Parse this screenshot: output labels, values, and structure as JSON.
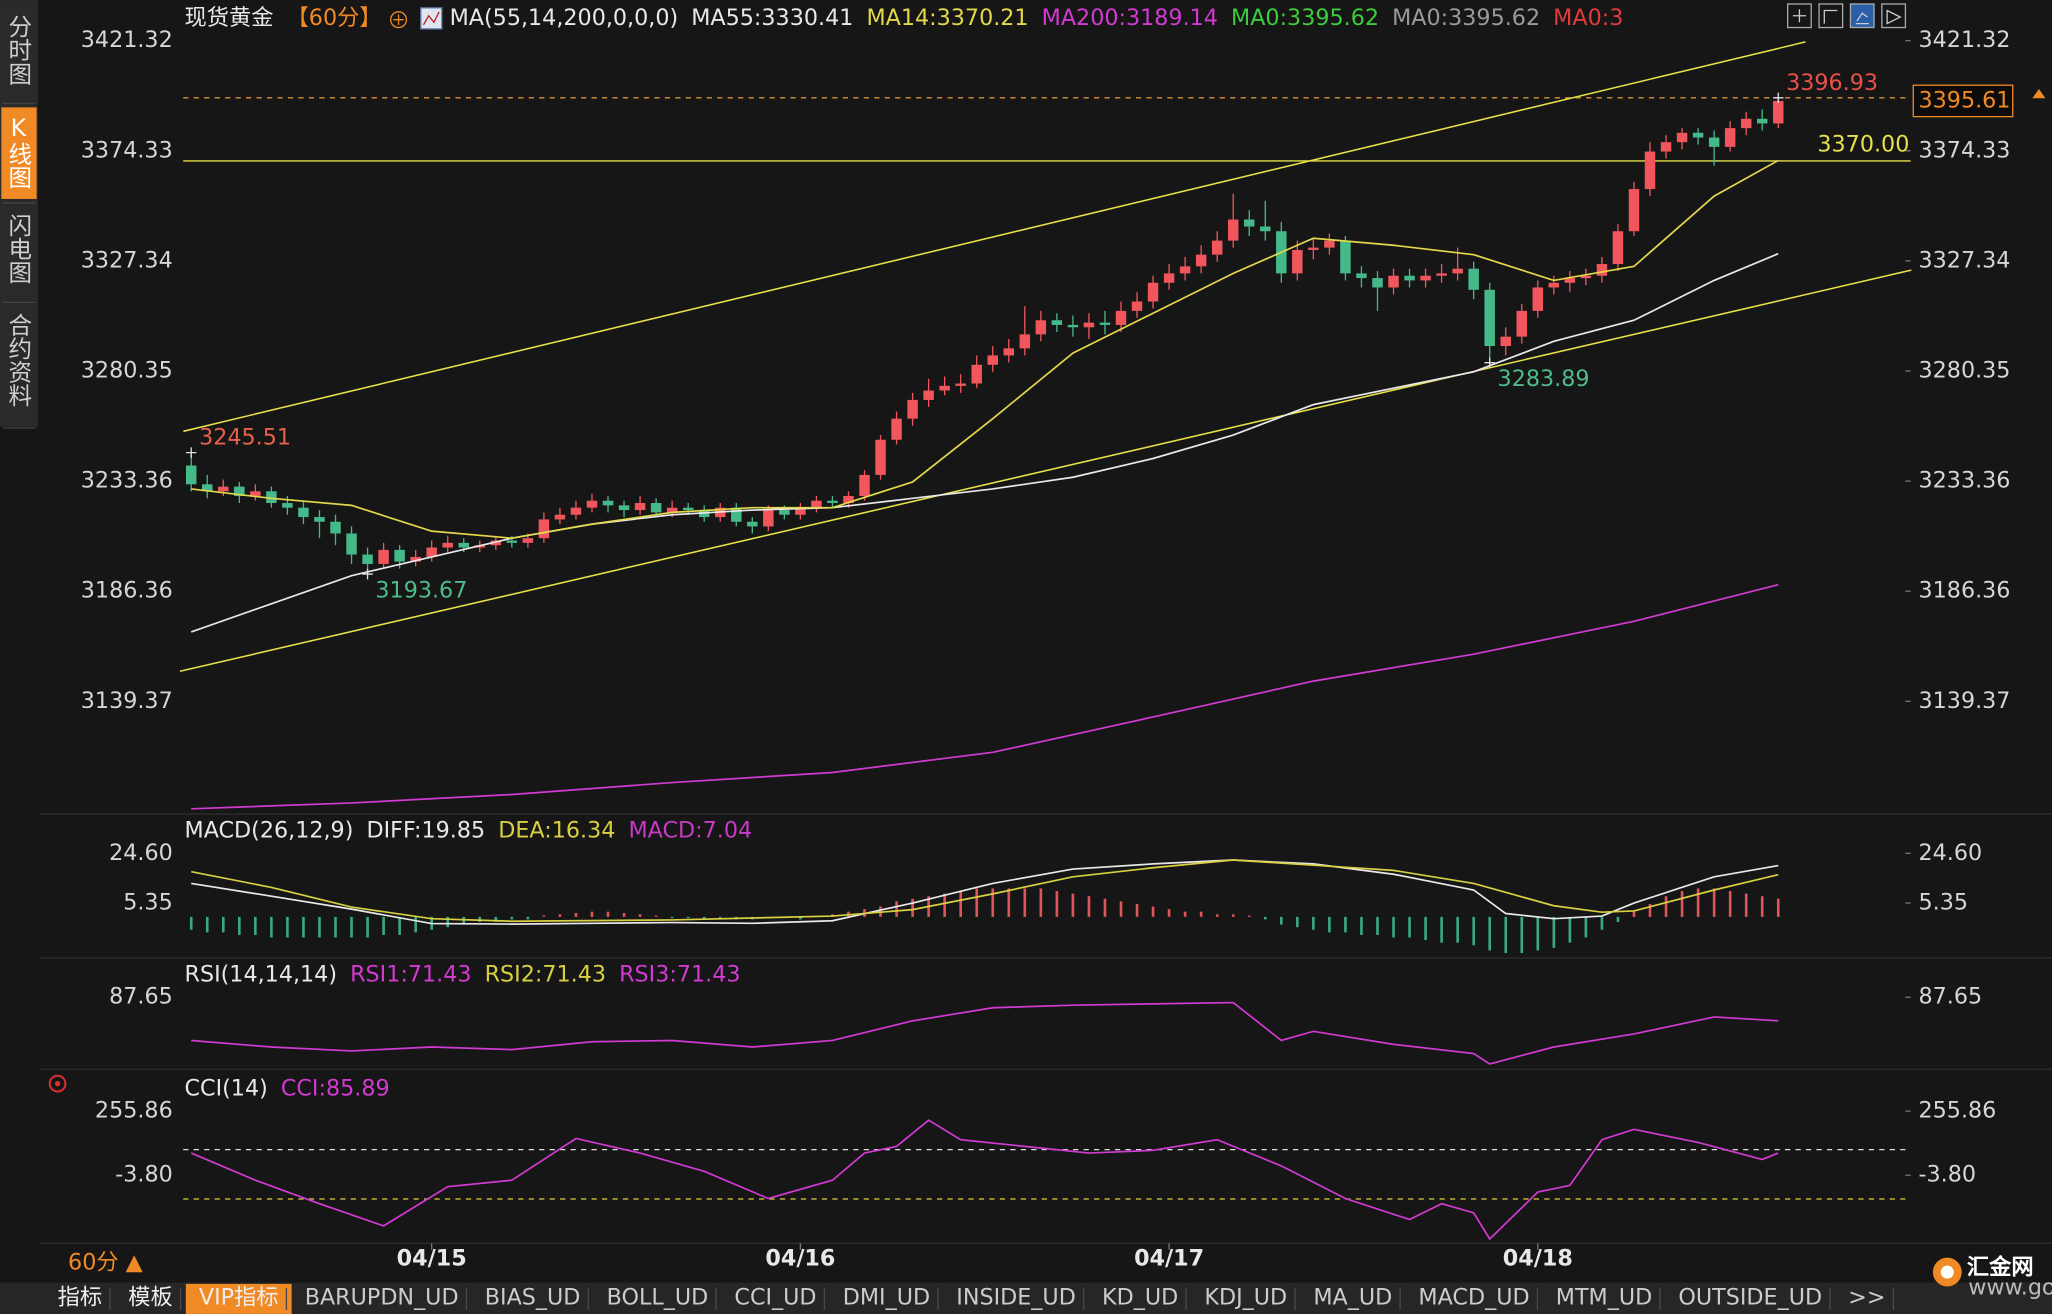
{
  "chart_data": [
    {
      "type": "candlestick",
      "title": "现货黄金",
      "period": "【60分】",
      "indicator": "MA(55,14,200,0,0,0)",
      "up_color": "#f0565c",
      "down_color": "#46b98a",
      "xlim": [
        -0.5,
        107.26
      ],
      "ylim": [
        3092.38,
        3438.66
      ],
      "yticks": [
        3421.32,
        3374.33,
        3327.34,
        3280.35,
        3233.36,
        3186.36,
        3139.37
      ],
      "open": [
        3240,
        3232,
        3229,
        3231,
        3227,
        3229,
        3224,
        3222,
        3218,
        3216,
        3211,
        3202,
        3198,
        3204,
        3199,
        3201,
        3205,
        3207,
        3205,
        3206,
        3208,
        3207,
        3209,
        3217,
        3219,
        3222,
        3225,
        3223,
        3221,
        3224,
        3220,
        3222,
        3221,
        3218,
        3222,
        3216,
        3214,
        3221,
        3219,
        3222,
        3225,
        3224,
        3227,
        3236,
        3251,
        3260,
        3268,
        3272,
        3274,
        3275,
        3283,
        3287,
        3290,
        3296,
        3302,
        3300,
        3299,
        3301,
        3300,
        3306,
        3310,
        3318,
        3322,
        3325,
        3330,
        3336,
        3345,
        3342,
        3340,
        3322,
        3332,
        3333,
        3336,
        3322,
        3320,
        3316,
        3321,
        3319,
        3321,
        3322,
        3324,
        3315,
        3291,
        3295,
        3306,
        3316,
        3318,
        3320,
        3321,
        3326,
        3340,
        3358,
        3374,
        3378,
        3382,
        3380,
        3376,
        3384,
        3388,
        3386
      ],
      "high": [
        3245.51,
        3236,
        3234,
        3233,
        3232,
        3231,
        3227,
        3225,
        3221,
        3219,
        3214,
        3205,
        3207,
        3206,
        3204,
        3208,
        3210,
        3209,
        3208,
        3210,
        3210,
        3211,
        3220,
        3222,
        3225,
        3228,
        3227,
        3225,
        3227,
        3226,
        3225,
        3224,
        3223,
        3224,
        3224,
        3218,
        3223,
        3223,
        3224,
        3227,
        3227,
        3229,
        3238,
        3253,
        3263,
        3271,
        3277,
        3278,
        3279,
        3287,
        3291,
        3294,
        3308,
        3306,
        3305,
        3304,
        3305,
        3306,
        3310,
        3314,
        3321,
        3326,
        3329,
        3334,
        3340,
        3356,
        3349,
        3353,
        3344,
        3336,
        3337,
        3339,
        3338,
        3325,
        3323,
        3324,
        3324,
        3324,
        3326,
        3333,
        3327,
        3318,
        3299,
        3309,
        3319,
        3321,
        3323,
        3324,
        3329,
        3343,
        3361,
        3378,
        3381,
        3384,
        3384,
        3383,
        3387,
        3391,
        3392,
        3396.93
      ],
      "low": [
        3229,
        3226,
        3227,
        3224,
        3225,
        3222,
        3219,
        3215,
        3209,
        3206,
        3198,
        3193.67,
        3196,
        3196,
        3197,
        3199,
        3203,
        3203,
        3203,
        3204,
        3205,
        3205,
        3207,
        3215,
        3217,
        3220,
        3220,
        3218,
        3219,
        3218,
        3218,
        3219,
        3216,
        3216,
        3214,
        3211,
        3212,
        3217,
        3217,
        3220,
        3222,
        3222,
        3225,
        3234,
        3249,
        3257,
        3265,
        3270,
        3271,
        3273,
        3280,
        3284,
        3287,
        3293,
        3297,
        3295,
        3294,
        3296,
        3297,
        3303,
        3307,
        3315,
        3319,
        3322,
        3327,
        3333,
        3338,
        3336,
        3318,
        3319,
        3328,
        3330,
        3319,
        3316,
        3306,
        3313,
        3316,
        3316,
        3318,
        3319,
        3311,
        3283.89,
        3287,
        3292,
        3303,
        3313,
        3314,
        3317,
        3318,
        3323,
        3338,
        3355,
        3371,
        3375,
        3377,
        3368,
        3374,
        3381,
        3383,
        3384
      ],
      "close": [
        3232,
        3229,
        3231,
        3227,
        3229,
        3224,
        3222,
        3218,
        3216,
        3211,
        3202,
        3198,
        3204,
        3199,
        3201,
        3205,
        3207,
        3205,
        3206,
        3208,
        3207,
        3209,
        3217,
        3219,
        3222,
        3225,
        3223,
        3221,
        3224,
        3220,
        3222,
        3221,
        3218,
        3222,
        3216,
        3214,
        3221,
        3219,
        3222,
        3225,
        3224,
        3227,
        3236,
        3251,
        3260,
        3268,
        3272,
        3274,
        3275,
        3283,
        3287,
        3290,
        3296,
        3302,
        3300,
        3299,
        3301,
        3300,
        3306,
        3310,
        3318,
        3322,
        3325,
        3330,
        3336,
        3345,
        3342,
        3340,
        3322,
        3332,
        3333,
        3336,
        3322,
        3320,
        3316,
        3321,
        3319,
        3321,
        3322,
        3324,
        3315,
        3291,
        3295,
        3306,
        3316,
        3318,
        3320,
        3321,
        3326,
        3340,
        3358,
        3374,
        3378,
        3382,
        3380,
        3376,
        3384,
        3388,
        3386,
        3395.61
      ],
      "series": [
        {
          "name": "MA55:3330.41",
          "color": "#e8e8e8",
          "x": [
            0,
            5,
            10,
            15,
            20,
            25,
            30,
            35,
            40,
            45,
            50,
            55,
            60,
            65,
            70,
            75,
            80,
            85,
            90,
            95,
            99
          ],
          "values": [
            3169,
            3181,
            3193,
            3201,
            3209,
            3215,
            3219,
            3221,
            3222,
            3226,
            3230,
            3235,
            3243,
            3253,
            3266,
            3273,
            3280,
            3293,
            3302,
            3319,
            3330.41
          ]
        },
        {
          "name": "MA14:3370.21",
          "color": "#e3d84a",
          "x": [
            0,
            5,
            10,
            15,
            20,
            25,
            30,
            35,
            40,
            45,
            50,
            55,
            60,
            65,
            70,
            75,
            80,
            85,
            90,
            95,
            99
          ],
          "values": [
            3230,
            3226,
            3223,
            3212,
            3209,
            3215,
            3220,
            3222,
            3222,
            3233,
            3260,
            3288,
            3305,
            3322,
            3337,
            3334,
            3330,
            3319,
            3325,
            3355,
            3370.21
          ]
        },
        {
          "name": "MA200:3189.14",
          "color": "#d23ad2",
          "x": [
            0,
            10,
            20,
            30,
            40,
            50,
            60,
            70,
            80,
            90,
            99
          ],
          "values": [
            3093.5,
            3096,
            3099.6,
            3104.7,
            3109,
            3117.6,
            3132.7,
            3148,
            3159.5,
            3173.5,
            3189.14
          ]
        }
      ],
      "extra_labels": [
        {
          "text": "MA0:3395.62",
          "color": "#3dcc3d"
        },
        {
          "text": "MA0:3395.62",
          "color": "#9a9a9a"
        },
        {
          "text": "MA0:3",
          "color": "#e03c3c"
        }
      ],
      "trendlines": [
        {
          "color": "#e6e04a",
          "x": [
            -0.49,
            100.7
          ],
          "values": [
            3254.6,
            3420.8
          ]
        },
        {
          "color": "#e6e04a",
          "x": [
            -0.7,
            107.3
          ],
          "values": [
            3152.2,
            3323.4
          ]
        }
      ],
      "hlines": [
        {
          "value": 3396.93,
          "color": "#d8903a",
          "dashed": true
        },
        {
          "value": 3370,
          "label": "3370.00",
          "color": "#e6e04a",
          "dashed": false
        }
      ],
      "annotations": [
        {
          "x": 0,
          "value": 3245.51,
          "color": "#e8604a"
        },
        {
          "x": 11,
          "value": 3193.67,
          "color": "#4dbb8a"
        },
        {
          "x": 81,
          "value": 3283.89,
          "color": "#4dbb8a"
        },
        {
          "x": 99,
          "value": 3396.93,
          "color": "#e8504a"
        }
      ],
      "price_box_color": "#f08a24"
    },
    {
      "type": "bar",
      "title": "MACD(26,12,9)",
      "xlim": [
        -0.5,
        107.26
      ],
      "ylim": [
        -14.91,
        38.28
      ],
      "yticks": [
        {
          "value": 24.6,
          "label": "24.60"
        },
        5.35
      ],
      "series": [
        {
          "name": "DIFF:19.85",
          "color": "#e8e8e8",
          "x": [
            0,
            5,
            10,
            15,
            20,
            25,
            30,
            35,
            40,
            45,
            50,
            55,
            60,
            65,
            70,
            75,
            80,
            82,
            85,
            88,
            90,
            95,
            99
          ],
          "values": [
            12.95,
            8,
            3,
            -2.6,
            -2.8,
            -2.5,
            -2.2,
            -2.5,
            -1.5,
            5.35,
            12.95,
            18.5,
            20.5,
            22,
            20.5,
            16.5,
            10.4,
            1.3,
            -0.7,
            0.3,
            5.35,
            15.5,
            19.85
          ]
        },
        {
          "name": "DEA:16.34",
          "color": "#d8d040",
          "x": [
            0,
            5,
            10,
            15,
            20,
            30,
            40,
            45,
            50,
            55,
            60,
            65,
            70,
            75,
            80,
            85,
            88,
            90,
            95,
            99
          ],
          "values": [
            17.5,
            11.4,
            3.8,
            -0.7,
            -1.7,
            -1.2,
            0.3,
            2.8,
            8.9,
            15.5,
            19,
            22,
            20,
            18,
            12.95,
            4.3,
            1.8,
            2.3,
            10.4,
            16.34
          ]
        },
        {
          "name": "MACD:7.04",
          "color": "#c43cc4",
          "type": "bar",
          "up_color": "#e0555a",
          "down_color": "#3aa880",
          "values": [
            -5,
            -6,
            -6,
            -7,
            -7,
            -8,
            -8,
            -8,
            -8,
            -8,
            -8,
            -8,
            -7,
            -7,
            -6,
            -5,
            -4,
            -3,
            -2,
            -2,
            -1,
            -1,
            0.5,
            1,
            1.5,
            2,
            2,
            1.5,
            1,
            0.5,
            -0.5,
            -0.5,
            -1,
            -1,
            -1,
            -1,
            -0.5,
            -0.5,
            -1,
            0.5,
            1,
            2,
            3,
            4,
            6,
            7,
            8,
            9,
            10,
            11,
            11,
            11,
            11,
            11,
            10,
            9,
            8,
            7,
            6,
            5,
            4,
            3,
            2,
            2,
            1,
            1,
            0.5,
            -1,
            -3,
            -4,
            -5,
            -6,
            -6,
            -7,
            -7,
            -8,
            -8,
            -9,
            -10,
            -10,
            -11,
            -13,
            -14,
            -14,
            -13,
            -12,
            -10,
            -8,
            -5,
            -2,
            2,
            5,
            8,
            10,
            11,
            11,
            10,
            9,
            8,
            7.04
          ]
        }
      ]
    },
    {
      "type": "line",
      "title": "RSI(14,14,14)",
      "xlim": [
        -0.5,
        107.26
      ],
      "ylim": [
        39.9,
        111.97
      ],
      "yticks": [
        87.65
      ],
      "series": [
        {
          "name": "RSI1:71.43",
          "color": "#d23ad2",
          "x": [
            0,
            5,
            10,
            15,
            20,
            25,
            30,
            35,
            40,
            45,
            50,
            55,
            60,
            65,
            68,
            70,
            75,
            80,
            81,
            85,
            90,
            95,
            99
          ],
          "values": [
            57.9,
            53.4,
            50.7,
            53.4,
            51.6,
            57,
            57.9,
            53.4,
            57.9,
            71.4,
            80.4,
            82.2,
            83.1,
            84,
            57.9,
            64.2,
            55.2,
            48.9,
            41.7,
            53.4,
            62.4,
            74.1,
            71.43
          ]
        }
      ],
      "extra_labels": [
        {
          "text": "RSI2:71.43",
          "color": "#d8d040"
        },
        {
          "text": "RSI3:71.43",
          "color": "#d23ad2"
        }
      ]
    },
    {
      "type": "line",
      "title": "CCI(14)",
      "xlim": [
        -0.5,
        107.26
      ],
      "ylim": [
        -279.35,
        409.5
      ],
      "yticks": [
        255.86,
        {
          "value": -3.8,
          "label": "-3.80"
        }
      ],
      "hlines": [
        {
          "value": 100,
          "color": "#dddddd",
          "dashed": true
        },
        {
          "value": -100,
          "color": "#e0d040",
          "dashed": true
        }
      ],
      "series": [
        {
          "name": "CCI:85.89",
          "color": "#d23ad2",
          "x": [
            0,
            4,
            8,
            12,
            16,
            20,
            24,
            28,
            32,
            36,
            40,
            42,
            44,
            46,
            48,
            52,
            56,
            60,
            64,
            68,
            72,
            76,
            78,
            80,
            81,
            84,
            86,
            88,
            90,
            94,
            98,
            99
          ],
          "values": [
            86,
            -24,
            -119,
            -209,
            -50,
            -24,
            145,
            86,
            12,
            -98,
            -24,
            86,
            113,
            219,
            140,
            113,
            86,
            97,
            140,
            34,
            -98,
            -183,
            -119,
            -156,
            -262,
            -72,
            -45,
            140,
            182,
            129,
            60,
            85.89
          ]
        }
      ],
      "xticks": [
        {
          "value": 15,
          "label": "04/15"
        },
        {
          "value": 38,
          "label": "04/16"
        },
        {
          "value": 61,
          "label": "04/17"
        },
        {
          "value": 84,
          "label": "04/18"
        }
      ]
    }
  ],
  "ui": {
    "sidebar_tabs": [
      "分时图",
      "K线图",
      "闪电图",
      "合约资料"
    ],
    "active_tab": 1,
    "period_button": "60分 ▲",
    "bottom_tabs": [
      "指标",
      "模板",
      "VIP指标",
      "BARUPDN_UD",
      "BIAS_UD",
      "BOLL_UD",
      "CCI_UD",
      "DMI_UD",
      "INSIDE_UD",
      "KD_UD",
      "KDJ_UD",
      "MA_UD",
      "MACD_UD",
      "MTM_UD",
      "OUTSIDE_UD",
      ">>"
    ],
    "active_bottom_tab": 2,
    "logo": "汇金网",
    "logo_url": "www.gold678.com"
  }
}
